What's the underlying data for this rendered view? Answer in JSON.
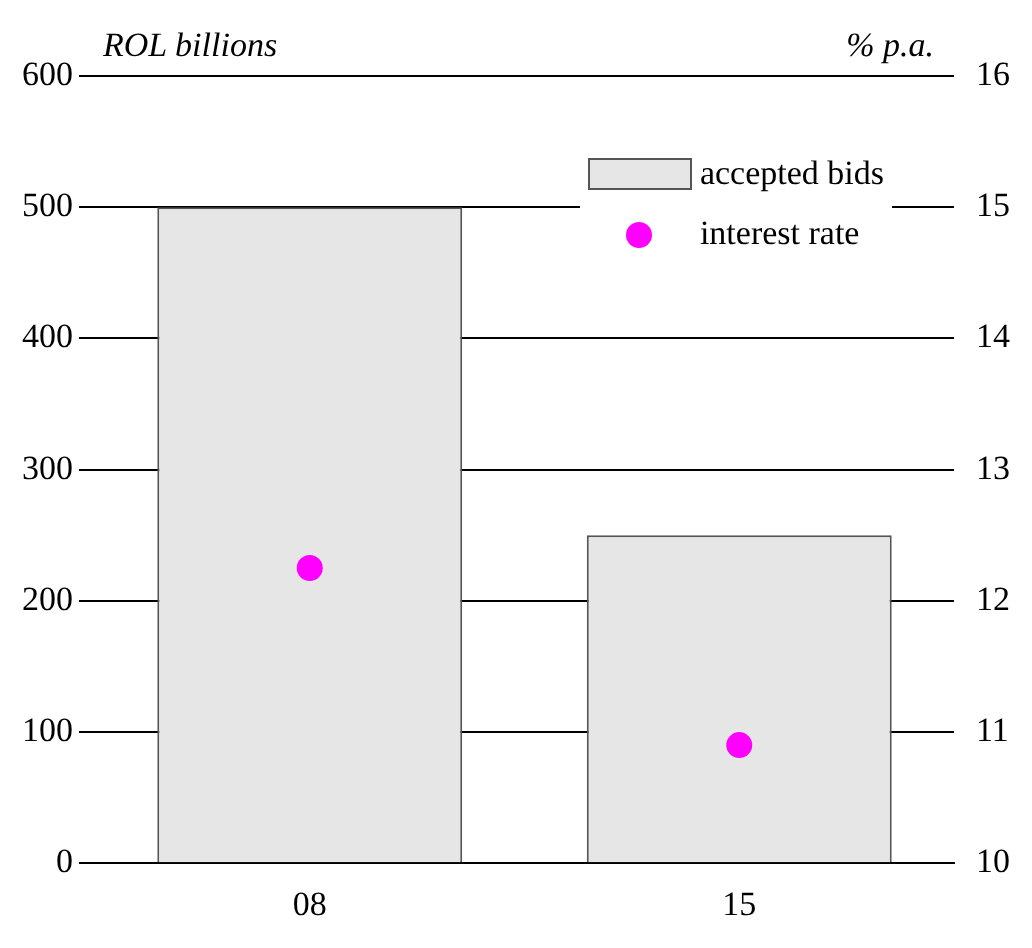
{
  "chart_data": {
    "type": "bar",
    "categories": [
      "08",
      "15"
    ],
    "ylabel": "ROL billions",
    "y2label": "% p.a.",
    "series": [
      {
        "name": "accepted bids",
        "color": "#e6e6e6",
        "values": [
          500,
          250
        ]
      },
      {
        "name": "interest rate",
        "type": "scatter",
        "axis": "y2",
        "color": "#ff00ff",
        "values": [
          12.25,
          10.9
        ]
      }
    ],
    "ylim": [
      0,
      600
    ],
    "yticks": [
      0,
      100,
      200,
      300,
      400,
      500,
      600
    ],
    "y2lim": [
      10,
      16
    ],
    "y2ticks": [
      10,
      11,
      12,
      13,
      14,
      15,
      16
    ],
    "grid": "y",
    "legend": "top right",
    "marker": "circle"
  }
}
